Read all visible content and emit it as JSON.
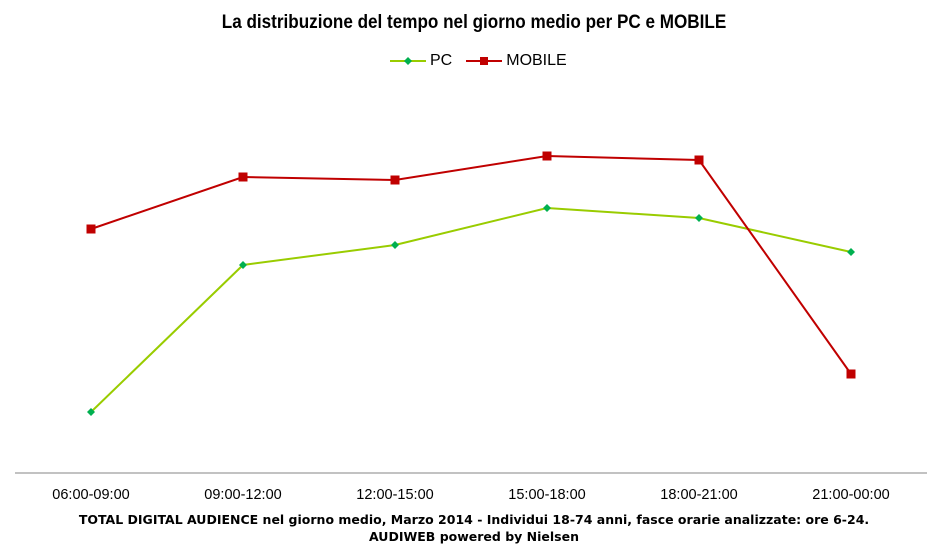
{
  "chart_data": {
    "type": "line",
    "title": "La distribuzione  del tempo nel giorno medio per PC e MOBILE",
    "xlabel": "",
    "ylabel": "",
    "categories": [
      "06:00-09:00",
      "09:00-12:00",
      "12:00-15:00",
      "15:00-18:00",
      "18:00-21:00",
      "21:00-00:00"
    ],
    "ylim": [
      0,
      380
    ],
    "y_axis_visible": false,
    "grid": false,
    "legend_position": "top-center",
    "series": [
      {
        "name": "PC",
        "line_color": "#99cc00",
        "marker_color": "#00b050",
        "marker": "diamond",
        "values": [
          61,
          208,
          228,
          265,
          255,
          221
        ]
      },
      {
        "name": "MOBILE",
        "line_color": "#c00000",
        "marker_color": "#c00000",
        "marker": "square",
        "values": [
          244,
          296,
          293,
          317,
          313,
          99
        ]
      }
    ]
  },
  "footer": {
    "line1": "TOTAL DIGITAL AUDIENCE nel giorno medio, Marzo 2014 - Individui 18-74 anni, fasce orarie analizzate: ore 6-24.",
    "line2": "AUDIWEB powered by Nielsen"
  }
}
